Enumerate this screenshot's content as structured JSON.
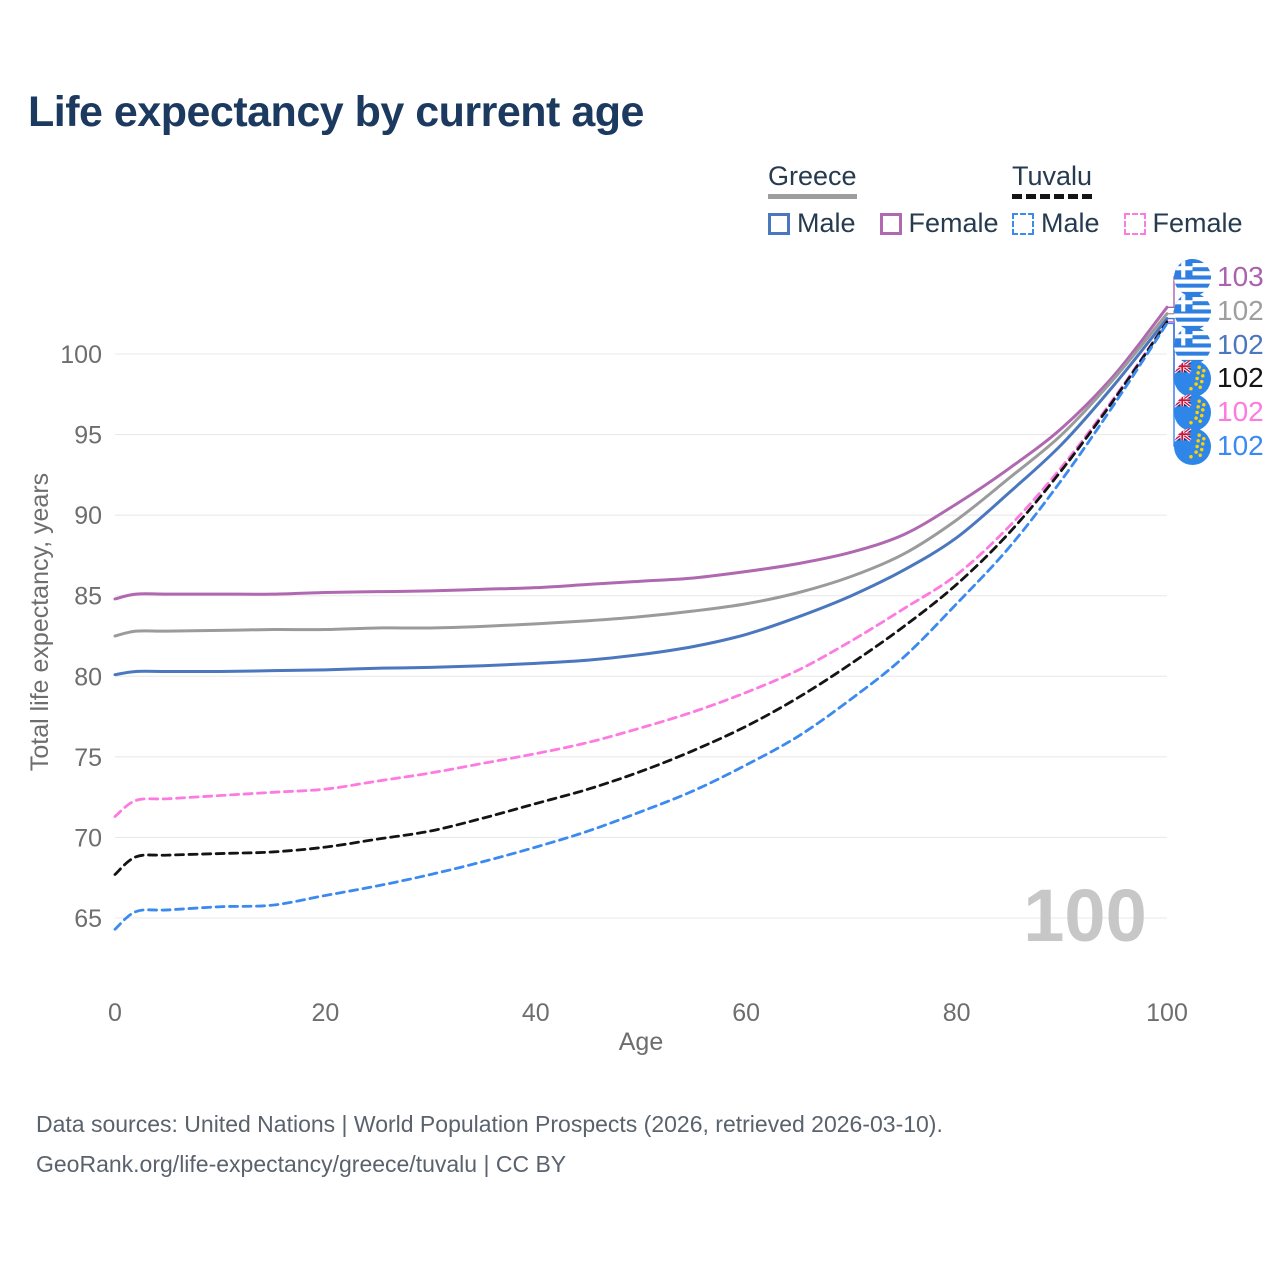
{
  "title": "Life expectancy by current age",
  "legend": {
    "groups": [
      {
        "name": "Greece",
        "line_style": "solid",
        "underline_color": "#9e9e9e",
        "items": [
          {
            "label": "Male",
            "color": "#4a77bd",
            "dashed": false
          },
          {
            "label": "Female",
            "color": "#b068b0",
            "dashed": false
          }
        ]
      },
      {
        "name": "Tuvalu",
        "line_style": "dashed",
        "underline_color": "#141414",
        "items": [
          {
            "label": "Male",
            "color": "#3b8af0",
            "dashed": true
          },
          {
            "label": "Female",
            "color": "#fd7ae1",
            "dashed": true
          }
        ]
      }
    ]
  },
  "chart_data": {
    "type": "line",
    "title": "Life expectancy by current age",
    "xlabel": "Age",
    "ylabel": "Total life expectancy, years",
    "xlim": [
      0,
      100
    ],
    "ylim": [
      65,
      100
    ],
    "x_ticks": [
      0,
      20,
      40,
      60,
      80,
      100
    ],
    "y_ticks": [
      65,
      70,
      75,
      80,
      85,
      90,
      95,
      100
    ],
    "grid": "horizontal",
    "legend_position": "top-right",
    "x": [
      0,
      2,
      5,
      10,
      15,
      20,
      25,
      30,
      35,
      40,
      45,
      50,
      55,
      60,
      65,
      70,
      75,
      80,
      85,
      90,
      95,
      100
    ],
    "series": [
      {
        "name": "Greece Female",
        "country": "greece",
        "sex": "female",
        "color": "#b068b0",
        "dashed": false,
        "values": [
          84.8,
          85.1,
          85.1,
          85.1,
          85.1,
          85.2,
          85.25,
          85.3,
          85.4,
          85.5,
          85.7,
          85.9,
          86.1,
          86.5,
          87.0,
          87.7,
          88.8,
          90.7,
          92.9,
          95.4,
          98.7,
          102.9
        ]
      },
      {
        "name": "Greece",
        "country": "greece",
        "sex": "both",
        "color": "#9b9b9b",
        "dashed": false,
        "values": [
          82.5,
          82.8,
          82.8,
          82.85,
          82.9,
          82.9,
          83.0,
          83.0,
          83.1,
          83.25,
          83.45,
          83.7,
          84.05,
          84.5,
          85.2,
          86.2,
          87.6,
          89.7,
          92.3,
          95.0,
          98.5,
          102.5
        ]
      },
      {
        "name": "Greece Male",
        "country": "greece",
        "sex": "male",
        "color": "#4a77bd",
        "dashed": false,
        "values": [
          80.1,
          80.3,
          80.3,
          80.3,
          80.35,
          80.4,
          80.5,
          80.55,
          80.65,
          80.8,
          81.0,
          81.35,
          81.85,
          82.6,
          83.7,
          85.0,
          86.6,
          88.6,
          91.4,
          94.4,
          98.1,
          102.2
        ]
      },
      {
        "name": "Tuvalu Female",
        "country": "tuvalu",
        "sex": "female",
        "color": "#fd7ae1",
        "dashed": true,
        "values": [
          71.3,
          72.3,
          72.4,
          72.6,
          72.8,
          73.0,
          73.5,
          74.0,
          74.6,
          75.2,
          75.9,
          76.8,
          77.8,
          79.0,
          80.4,
          82.2,
          84.2,
          86.3,
          89.3,
          93.0,
          97.3,
          102.0
        ]
      },
      {
        "name": "Tuvalu",
        "country": "tuvalu",
        "sex": "both",
        "color": "#141414",
        "dashed": true,
        "values": [
          67.7,
          68.8,
          68.9,
          69.0,
          69.1,
          69.4,
          69.9,
          70.4,
          71.2,
          72.1,
          73.0,
          74.1,
          75.4,
          76.9,
          78.7,
          80.8,
          83.1,
          85.7,
          88.9,
          92.8,
          97.2,
          102.0
        ]
      },
      {
        "name": "Tuvalu Male",
        "country": "tuvalu",
        "sex": "male",
        "color": "#3b8af0",
        "dashed": true,
        "values": [
          64.3,
          65.4,
          65.5,
          65.7,
          65.8,
          66.4,
          67.0,
          67.7,
          68.5,
          69.4,
          70.4,
          71.6,
          72.9,
          74.5,
          76.3,
          78.6,
          81.2,
          84.5,
          88.0,
          92.2,
          96.9,
          101.9
        ]
      }
    ]
  },
  "end_labels": [
    {
      "series": 0,
      "country": "greece",
      "value": "103",
      "color": "#ac61ae"
    },
    {
      "series": 1,
      "country": "greece",
      "value": "102",
      "color": "#9e9e9e"
    },
    {
      "series": 2,
      "country": "greece",
      "value": "102",
      "color": "#4a77bd"
    },
    {
      "series": 4,
      "country": "tuvalu",
      "value": "102",
      "color": "#141414"
    },
    {
      "series": 3,
      "country": "tuvalu",
      "value": "102",
      "color": "#fd7ae1"
    },
    {
      "series": 5,
      "country": "tuvalu",
      "value": "102",
      "color": "#3b8af0"
    }
  ],
  "watermark": "100",
  "footer": {
    "line1": "Data sources: United Nations | World Population Prospects (2026, retrieved 2026-03-10).",
    "line2": "GeoRank.org/life-expectancy/greece/tuvalu | CC BY"
  }
}
